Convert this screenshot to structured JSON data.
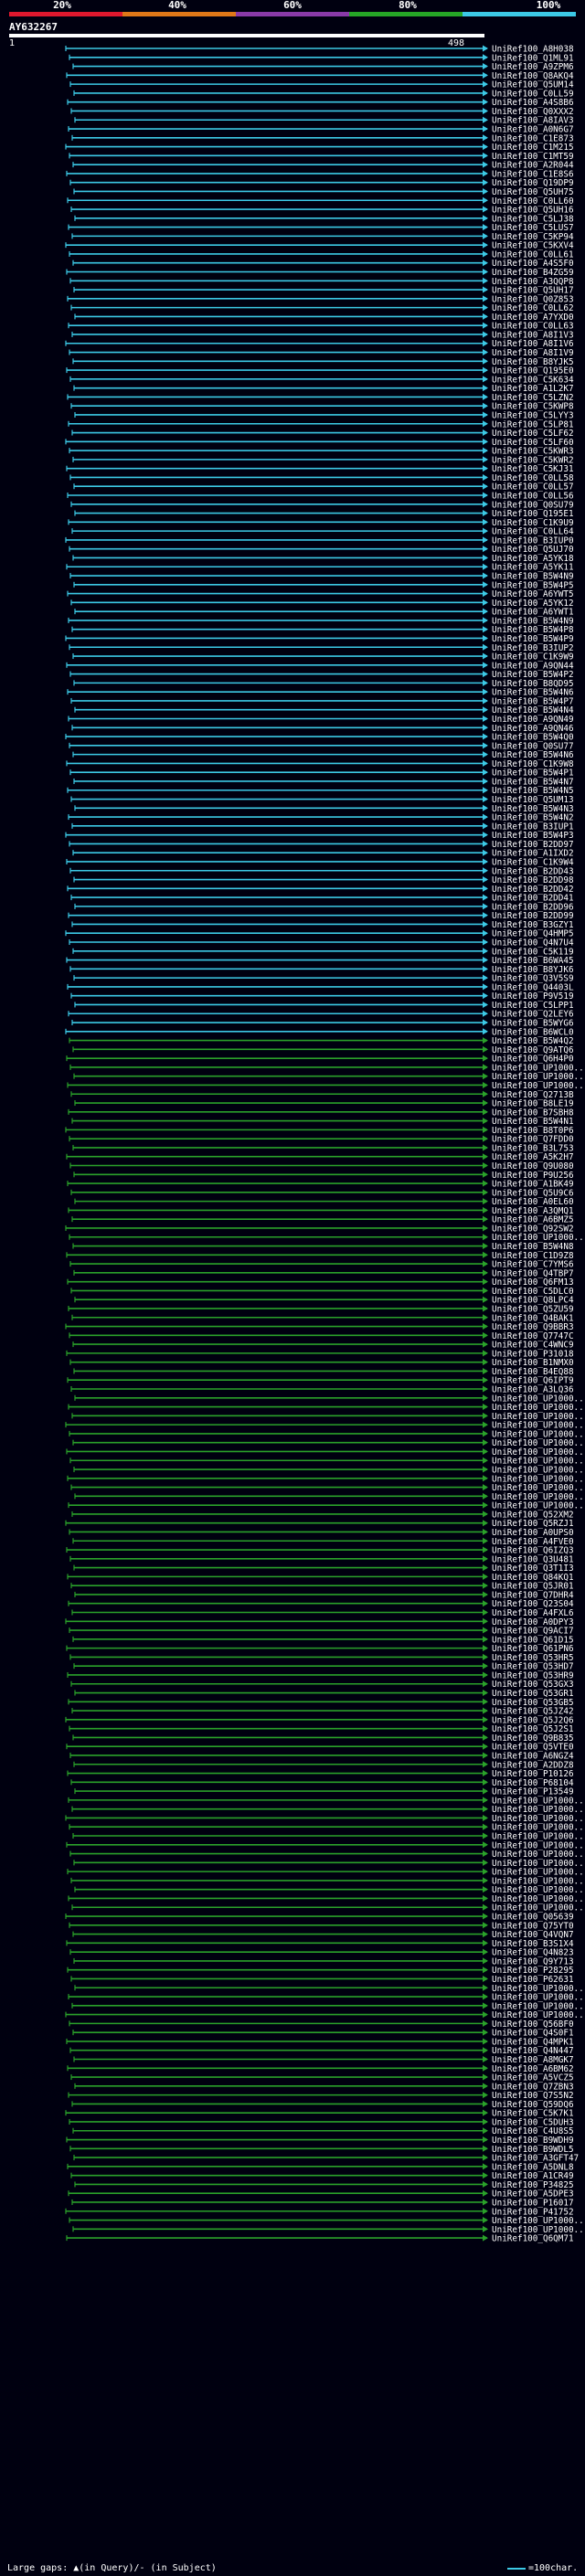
{
  "scale": {
    "labels": [
      "20%",
      "40%",
      "60%",
      "80%",
      "100%"
    ],
    "colors": [
      "#e0182e",
      "#e07818",
      "#8a3aa8",
      "#26a626",
      "#3cc9e6"
    ]
  },
  "query": {
    "name": "AY632267",
    "start": "1",
    "end": "498"
  },
  "colors": {
    "identity_80_100": "#3cc9e6",
    "identity_60_80": "#2aa12a",
    "label": "#ffffff",
    "background": "#000010"
  },
  "hits": [
    "UniRef100_A8H038",
    "UniRef100_Q1ML91",
    "UniRef100_A9ZPM6",
    "UniRef100_Q8AKQ4",
    "UniRef100_Q5UM14",
    "UniRef100_C0LL59",
    "UniRef100_A4S8B6",
    "UniRef100_Q0XXX2",
    "UniRef100_A8IAV3",
    "UniRef100_A0N6G7",
    "UniRef100_C1E873",
    "UniRef100_C1M215",
    "UniRef100_C1MT59",
    "UniRef100_A2R044",
    "UniRef100_C1E8S6",
    "UniRef100_Q19DP9",
    "UniRef100_Q5UH75",
    "UniRef100_C0LL60",
    "UniRef100_Q5UH16",
    "UniRef100_C5LJ38",
    "UniRef100_C5LUS7",
    "UniRef100_C5KP94",
    "UniRef100_C5KXV4",
    "UniRef100_C0LL61",
    "UniRef100_A4S5F0",
    "UniRef100_B4ZG59",
    "UniRef100_A3QQP8",
    "UniRef100_Q5UH17",
    "UniRef100_Q0Z853",
    "UniRef100_C0LL62",
    "UniRef100_A7YXD0",
    "UniRef100_C0LL63",
    "UniRef100_A8I1V3",
    "UniRef100_A8I1V6",
    "UniRef100_A8I1V9",
    "UniRef100_B8YJK5",
    "UniRef100_Q195E0",
    "UniRef100_C5K634",
    "UniRef100_A1L2K7",
    "UniRef100_C5LZN2",
    "UniRef100_C5KWP8",
    "UniRef100_C5LYY3",
    "UniRef100_C5LP81",
    "UniRef100_C5LF62",
    "UniRef100_C5LF60",
    "UniRef100_C5KWR3",
    "UniRef100_C5KWR2",
    "UniRef100_C5KJ31",
    "UniRef100_C0LL58",
    "UniRef100_C0LL57",
    "UniRef100_C0LL56",
    "UniRef100_Q0SU79",
    "UniRef100_Q195E1",
    "UniRef100_C1K9U9",
    "UniRef100_C0LL64",
    "UniRef100_B3IUP0",
    "UniRef100_Q5UJ70",
    "UniRef100_A5YK18",
    "UniRef100_A5YK11",
    "UniRef100_B5W4N9",
    "UniRef100_B5W4P5",
    "UniRef100_A6YWT5",
    "UniRef100_A5YK12",
    "UniRef100_A6YWT1",
    "UniRef100_B5W4N9",
    "UniRef100_B5W4P8",
    "UniRef100_B5W4P9",
    "UniRef100_B3IUP2",
    "UniRef100_C1K9W9",
    "UniRef100_A9QN44",
    "UniRef100_B5W4P2",
    "UniRef100_B8QD95",
    "UniRef100_B5W4N6",
    "UniRef100_B5W4P7",
    "UniRef100_B5W4N4",
    "UniRef100_A9QN49",
    "UniRef100_A9QN46",
    "UniRef100_B5W4Q0",
    "UniRef100_Q0SU77",
    "UniRef100_B5W4N6",
    "UniRef100_C1K9W8",
    "UniRef100_B5W4P1",
    "UniRef100_B5W4N7",
    "UniRef100_B5W4N5",
    "UniRef100_Q5UM13",
    "UniRef100_B5W4N3",
    "UniRef100_B5W4N2",
    "UniRef100_B3IUP1",
    "UniRef100_B5W4P3",
    "UniRef100_B2DD97",
    "UniRef100_A1IXD2",
    "UniRef100_C1K9W4",
    "UniRef100_B2DD43",
    "UniRef100_B2DD98",
    "UniRef100_B2DD42",
    "UniRef100_B2DD41",
    "UniRef100_B2DD96",
    "UniRef100_B2DD99",
    "UniRef100_B3GZY1",
    "UniRef100_Q4HMP5",
    "UniRef100_Q4N7U4",
    "UniRef100_C5K119",
    "UniRef100_B6WA45",
    "UniRef100_B8YJK6",
    "UniRef100_Q3V5S9",
    "UniRef100_Q4403L",
    "UniRef100_P9V519",
    "UniRef100_C5LPP1",
    "UniRef100_Q2LEY6",
    "UniRef100_B5WYG6",
    "UniRef100_B6WCL0",
    "UniRef100_B5W4Q2",
    "UniRef100_Q9ATQ6",
    "UniRef100_Q6H4P0",
    "UniRef100_UP1000...",
    "UniRef100_UP1000...",
    "UniRef100_UP1000...",
    "UniRef100_Q2713B",
    "UniRef100_B8LE19",
    "UniRef100_B7SBH8",
    "UniRef100_B5W4N1",
    "UniRef100_B8T0P6",
    "UniRef100_Q7FDD0",
    "UniRef100_B3L753",
    "UniRef100_A5K2H7",
    "UniRef100_Q9U080",
    "UniRef100_P9U256",
    "UniRef100_A1BK49",
    "UniRef100_Q5U9C6",
    "UniRef100_A0EL60",
    "UniRef100_A3QMQ1",
    "UniRef100_A6BMZ5",
    "UniRef100_Q92SW2",
    "UniRef100_UP1000...",
    "UniRef100_B5W4N8",
    "UniRef100_C1D9Z8",
    "UniRef100_C7YMS6",
    "UniRef100_Q4TBP7",
    "UniRef100_Q6FM13",
    "UniRef100_C5DLC0",
    "UniRef100_Q8LPC4",
    "UniRef100_Q5ZU59",
    "UniRef100_Q4BAK1",
    "UniRef100_Q9BBR3",
    "UniRef100_Q7747C",
    "UniRef100_C4WNC9",
    "UniRef100_P31018",
    "UniRef100_B1NMX0",
    "UniRef100_B4EQ88",
    "UniRef100_Q6IPT9",
    "UniRef100_A3LQ36",
    "UniRef100_UP1000...",
    "UniRef100_UP1000...",
    "UniRef100_UP1000...",
    "UniRef100_UP1000...",
    "UniRef100_UP1000...",
    "UniRef100_UP1000...",
    "UniRef100_UP1000...",
    "UniRef100_UP1000...",
    "UniRef100_UP1000...",
    "UniRef100_UP1000...",
    "UniRef100_UP1000...",
    "UniRef100_UP1000...",
    "UniRef100_UP1000...",
    "UniRef100_Q52XM2",
    "UniRef100_Q5RZJ1",
    "UniRef100_A0UPS0",
    "UniRef100_A4FVE0",
    "UniRef100_Q6IZQ3",
    "UniRef100_Q3U481",
    "UniRef100_Q3T1I3",
    "UniRef100_Q84KQ1",
    "UniRef100_Q5JR01",
    "UniRef100_Q7DHR4",
    "UniRef100_Q23S04",
    "UniRef100_A4FXL6",
    "UniRef100_A0DPY3",
    "UniRef100_Q9ACI7",
    "UniRef100_Q61D15",
    "UniRef100_Q61PN6",
    "UniRef100_Q53HR5",
    "UniRef100_Q53HD7",
    "UniRef100_Q53HR9",
    "UniRef100_Q53GX3",
    "UniRef100_Q53GR1",
    "UniRef100_Q53GB5",
    "UniRef100_Q5JZ42",
    "UniRef100_Q5J2Q6",
    "UniRef100_Q5J2S1",
    "UniRef100_Q9B835",
    "UniRef100_Q5VTE0",
    "UniRef100_A6NGZ4",
    "UniRef100_A2DDZ8",
    "UniRef100_P10126",
    "UniRef100_P68104",
    "UniRef100_P13549",
    "UniRef100_UP1000...",
    "UniRef100_UP1000...",
    "UniRef100_UP1000...",
    "UniRef100_UP1000...",
    "UniRef100_UP1000...",
    "UniRef100_UP1000...",
    "UniRef100_UP1000...",
    "UniRef100_UP1000...",
    "UniRef100_UP1000...",
    "UniRef100_UP1000...",
    "UniRef100_UP1000...",
    "UniRef100_UP1000...",
    "UniRef100_UP1000...",
    "UniRef100_Q05639",
    "UniRef100_Q75YT0",
    "UniRef100_Q4VQN7",
    "UniRef100_B3S1X4",
    "UniRef100_Q4N823",
    "UniRef100_Q9Y713",
    "UniRef100_P28295",
    "UniRef100_P62631",
    "UniRef100_UP1000...",
    "UniRef100_UP1000...",
    "UniRef100_UP1000...",
    "UniRef100_UP1000...",
    "UniRef100_Q56BF0",
    "UniRef100_Q4S0F1",
    "UniRef100_Q4MPK1",
    "UniRef100_Q4N447",
    "UniRef100_A8MGK7",
    "UniRef100_A6BM62",
    "UniRef100_A5VCZ5",
    "UniRef100_Q7ZBN3",
    "UniRef100_Q7S5N2",
    "UniRef100_Q59DQ6",
    "UniRef100_C5K7K1",
    "UniRef100_C5DUH3",
    "UniRef100_C4U8S5",
    "UniRef100_B9WDH9",
    "UniRef100_B9WDL5",
    "UniRef100_A3GFT47",
    "UniRef100_A5DNL8",
    "UniRef100_A1CR49",
    "UniRef100_P34825",
    "UniRef100_A5DPE3",
    "UniRef100_P16017",
    "UniRef100_P41752",
    "UniRef100_UP1000...",
    "UniRef100_UP1000...",
    "UniRef100_Q6QM71"
  ],
  "footer": {
    "gaps_label": "Large gaps: ▲(in Query)/- (in Subject)",
    "legend_label": "=100char."
  }
}
